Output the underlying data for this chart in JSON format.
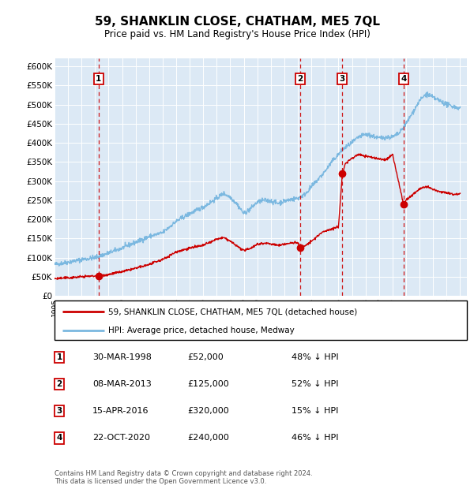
{
  "title": "59, SHANKLIN CLOSE, CHATHAM, ME5 7QL",
  "subtitle": "Price paid vs. HM Land Registry's House Price Index (HPI)",
  "hpi_color": "#7bb8e0",
  "price_color": "#cc0000",
  "background_color": "#dce9f5",
  "ylim": [
    0,
    620000
  ],
  "yticks": [
    0,
    50000,
    100000,
    150000,
    200000,
    250000,
    300000,
    350000,
    400000,
    450000,
    500000,
    550000,
    600000
  ],
  "transactions": [
    {
      "num": 1,
      "date_str": "30-MAR-1998",
      "year": 1998.25,
      "price": 52000,
      "label": "£52,000",
      "pct": "48% ↓ HPI"
    },
    {
      "num": 2,
      "date_str": "08-MAR-2013",
      "year": 2013.18,
      "price": 125000,
      "label": "£125,000",
      "pct": "52% ↓ HPI"
    },
    {
      "num": 3,
      "date_str": "15-APR-2016",
      "year": 2016.29,
      "price": 320000,
      "label": "£320,000",
      "pct": "15% ↓ HPI"
    },
    {
      "num": 4,
      "date_str": "22-OCT-2020",
      "year": 2020.81,
      "price": 240000,
      "label": "£240,000",
      "pct": "46% ↓ HPI"
    }
  ],
  "legend_entries": [
    "59, SHANKLIN CLOSE, CHATHAM, ME5 7QL (detached house)",
    "HPI: Average price, detached house, Medway"
  ],
  "footnote": "Contains HM Land Registry data © Crown copyright and database right 2024.\nThis data is licensed under the Open Government Licence v3.0.",
  "xlim_start": 1995.0,
  "xlim_end": 2025.5
}
